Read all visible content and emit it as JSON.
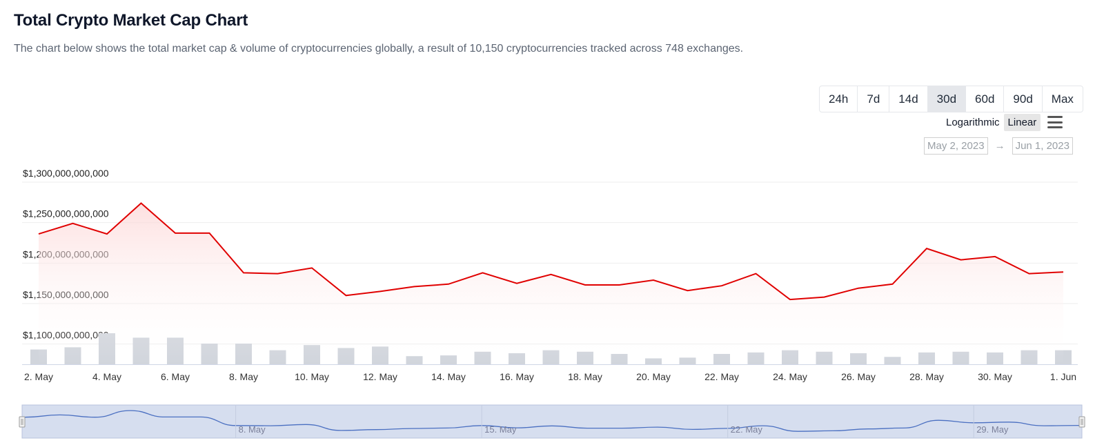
{
  "header": {
    "title": "Total Crypto Market Cap Chart",
    "subtitle": "The chart below shows the total market cap & volume of cryptocurrencies globally, a result of 10,150 cryptocurrencies tracked across 748 exchanges."
  },
  "controls": {
    "ranges": [
      "24h",
      "7d",
      "14d",
      "30d",
      "60d",
      "90d",
      "Max"
    ],
    "active_range": "30d",
    "scale_log_label": "Logarithmic",
    "scale_linear_label": "Linear",
    "active_scale": "Linear",
    "date_from": "May 2, 2023",
    "date_arrow": "→",
    "date_to": "Jun 1, 2023"
  },
  "colors": {
    "line": "#e00000",
    "area_top": "#fcd5d5",
    "volume_bar": "#d1d5dc",
    "navigator_fill": "#d6deef",
    "navigator_line": "#4a6fc1"
  },
  "chart_data": {
    "type": "area",
    "y_tick_labels": [
      "$1,100,000,000,000",
      "$1,150,000,000,000",
      "$1,200,000,000,000",
      "$1,250,000,000,000",
      "$1,300,000,000,000"
    ],
    "ylim": [
      1075000000000,
      1300000000000
    ],
    "x_tick_labels": [
      "2. May",
      "4. May",
      "6. May",
      "8. May",
      "10. May",
      "12. May",
      "14. May",
      "16. May",
      "18. May",
      "20. May",
      "22. May",
      "24. May",
      "26. May",
      "28. May",
      "30. May",
      "1. Jun"
    ],
    "navigator_labels": [
      "8. May",
      "15. May",
      "22. May",
      "29. May"
    ],
    "x": [
      "2023-05-02",
      "2023-05-03",
      "2023-05-04",
      "2023-05-05",
      "2023-05-06",
      "2023-05-07",
      "2023-05-08",
      "2023-05-09",
      "2023-05-10",
      "2023-05-11",
      "2023-05-12",
      "2023-05-13",
      "2023-05-14",
      "2023-05-15",
      "2023-05-16",
      "2023-05-17",
      "2023-05-18",
      "2023-05-19",
      "2023-05-20",
      "2023-05-21",
      "2023-05-22",
      "2023-05-23",
      "2023-05-24",
      "2023-05-25",
      "2023-05-26",
      "2023-05-27",
      "2023-05-28",
      "2023-05-29",
      "2023-05-30",
      "2023-05-31",
      "2023-06-01"
    ],
    "series": [
      {
        "values": [
          1236000000000,
          1249000000000,
          1236000000000,
          1274000000000,
          1237000000000,
          1237000000000,
          1188000000000,
          1187000000000,
          1194000000000,
          1160000000000,
          1165000000000,
          1171000000000,
          1174000000000,
          1188000000000,
          1175000000000,
          1186000000000,
          1173000000000,
          1173000000000,
          1179000000000,
          1166000000000,
          1172000000000,
          1187000000000,
          1155000000000,
          1158000000000,
          1169000000000,
          1174000000000,
          1218000000000,
          1204000000000,
          1208000000000,
          1187000000000,
          1189000000000
        ]
      },
      {
        "values": [
          20,
          23,
          42,
          36,
          36,
          28,
          28,
          19,
          26,
          22,
          24,
          11,
          12,
          17,
          15,
          19,
          17,
          14,
          8,
          9,
          14,
          16,
          19,
          17,
          15,
          10,
          16,
          17,
          16,
          19,
          19
        ]
      }
    ],
    "grid": true
  }
}
